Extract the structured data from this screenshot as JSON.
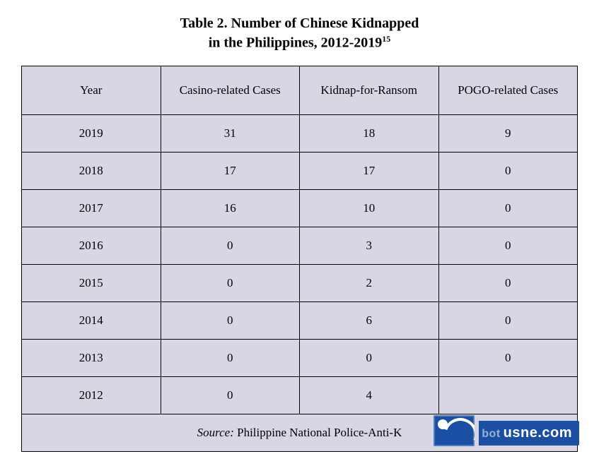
{
  "title": {
    "line1": "Table 2. Number of Chinese Kidnapped",
    "line2_prefix": "in the Philippines, 2012-2019",
    "footnote_marker": "15"
  },
  "table": {
    "columns": [
      "Year",
      "Casino-related Cases",
      "Kidnap-for-Ransom",
      "POGO-related Cases"
    ],
    "rows": [
      [
        "2019",
        "31",
        "18",
        "9"
      ],
      [
        "2018",
        "17",
        "17",
        "0"
      ],
      [
        "2017",
        "16",
        "10",
        "0"
      ],
      [
        "2016",
        "0",
        "3",
        "0"
      ],
      [
        "2015",
        "0",
        "2",
        "0"
      ],
      [
        "2014",
        "0",
        "6",
        "0"
      ],
      [
        "2013",
        "0",
        "0",
        "0"
      ],
      [
        "2012",
        "0",
        "4",
        ""
      ]
    ],
    "source_label": "Source:",
    "source_text": " Philippine National Police-Anti-K",
    "cell_background": "#d9d6e4",
    "border_color": "#000000",
    "font_size": 17,
    "header_font_size": 17
  },
  "watermark": {
    "faded_text": "bot",
    "main_text": "usne.com",
    "bg_color": "#1b4fa3",
    "text_color": "#ffffff"
  }
}
